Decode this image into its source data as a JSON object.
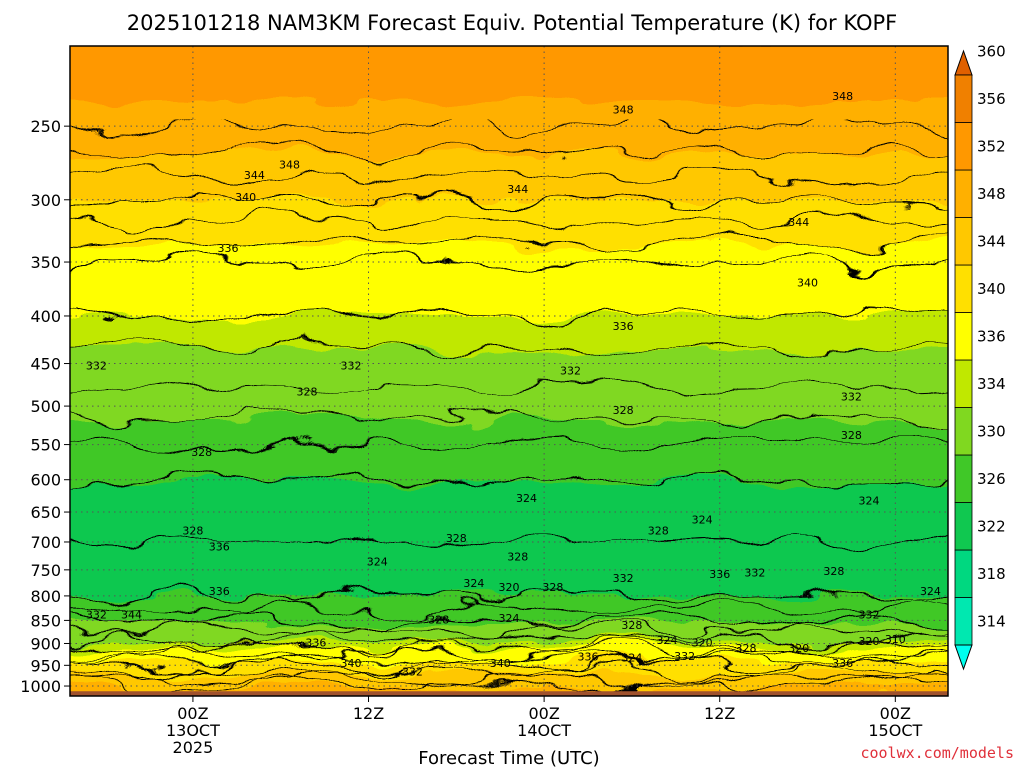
{
  "chart_data": {
    "type": "heatmap",
    "title": "2025101218 NAM3KM Forecast Equiv. Potential Temperature (K) for KOPF",
    "xlabel": "Forecast Time (UTC)",
    "ylabel": "",
    "credit": "coolwx.com/models",
    "y_axis": {
      "scale": "pressure-log",
      "range": [
        1025,
        205
      ],
      "ticks": [
        250,
        300,
        350,
        400,
        450,
        500,
        550,
        600,
        650,
        700,
        750,
        800,
        850,
        900,
        950,
        1000
      ]
    },
    "x_axis": {
      "range_hours": [
        -7,
        43
      ],
      "ticks": [
        {
          "hour": 0,
          "lines": [
            "00Z",
            "13OCT",
            "2025"
          ]
        },
        {
          "hour": 10,
          "lines": [
            "12Z"
          ]
        },
        {
          "hour": 20,
          "lines": [
            "00Z",
            "14OCT"
          ]
        },
        {
          "hour": 30,
          "lines": [
            "12Z"
          ]
        },
        {
          "hour": 40,
          "lines": [
            "00Z",
            "15OCT"
          ]
        }
      ]
    },
    "colorbar": {
      "ticks": [
        314,
        318,
        322,
        326,
        330,
        334,
        336,
        340,
        344,
        348,
        352,
        356,
        360
      ],
      "levels": [
        312,
        314,
        318,
        322,
        326,
        330,
        334,
        336,
        340,
        344,
        348,
        352,
        356,
        360,
        364
      ],
      "colors": [
        "#00ffee",
        "#00e8b0",
        "#00d880",
        "#10c850",
        "#40c828",
        "#80d820",
        "#c0e800",
        "#ffff00",
        "#ffe000",
        "#ffc800",
        "#ffb000",
        "#ff9800",
        "#f08000",
        "#e06000"
      ]
    },
    "grid": true,
    "ground_color": "#a0522d",
    "ground_pressure": 1013,
    "profile": [
      {
        "p": 250,
        "theta": 350
      },
      {
        "p": 300,
        "theta": 344
      },
      {
        "p": 350,
        "theta": 338
      },
      {
        "p": 400,
        "theta": 336
      },
      {
        "p": 450,
        "theta": 333
      },
      {
        "p": 500,
        "theta": 331
      },
      {
        "p": 550,
        "theta": 328
      },
      {
        "p": 600,
        "theta": 326
      },
      {
        "p": 650,
        "theta": 325
      },
      {
        "p": 700,
        "theta": 326
      },
      {
        "p": 750,
        "theta": 325
      },
      {
        "p": 800,
        "theta": 326
      },
      {
        "p": 850,
        "theta": 330
      },
      {
        "p": 900,
        "theta": 335
      },
      {
        "p": 950,
        "theta": 342
      },
      {
        "p": 1000,
        "theta": 348
      }
    ],
    "contour_labels": [
      {
        "hour": 37,
        "p": 232,
        "text": "348"
      },
      {
        "hour": 24.5,
        "p": 240,
        "text": "348"
      },
      {
        "hour": 5.5,
        "p": 275,
        "text": "348"
      },
      {
        "hour": 3.5,
        "p": 282,
        "text": "344"
      },
      {
        "hour": 18.5,
        "p": 292,
        "text": "344"
      },
      {
        "hour": 3,
        "p": 298,
        "text": "340"
      },
      {
        "hour": 34.5,
        "p": 317,
        "text": "344"
      },
      {
        "hour": 2,
        "p": 338,
        "text": "336"
      },
      {
        "hour": 35,
        "p": 368,
        "text": "340"
      },
      {
        "hour": 24.5,
        "p": 410,
        "text": "336"
      },
      {
        "hour": -5.5,
        "p": 452,
        "text": "332"
      },
      {
        "hour": 9,
        "p": 452,
        "text": "332"
      },
      {
        "hour": 21.5,
        "p": 458,
        "text": "332"
      },
      {
        "hour": 6.5,
        "p": 482,
        "text": "328"
      },
      {
        "hour": 37.5,
        "p": 488,
        "text": "332"
      },
      {
        "hour": 24.5,
        "p": 505,
        "text": "328"
      },
      {
        "hour": 37.5,
        "p": 537,
        "text": "328"
      },
      {
        "hour": 0.5,
        "p": 560,
        "text": "328"
      },
      {
        "hour": 19,
        "p": 628,
        "text": "324"
      },
      {
        "hour": 38.5,
        "p": 632,
        "text": "324"
      },
      {
        "hour": 29,
        "p": 662,
        "text": "324"
      },
      {
        "hour": 0,
        "p": 680,
        "text": "328"
      },
      {
        "hour": 26.5,
        "p": 680,
        "text": "328"
      },
      {
        "hour": 15,
        "p": 693,
        "text": "328"
      },
      {
        "hour": 1.5,
        "p": 708,
        "text": "336"
      },
      {
        "hour": 18.5,
        "p": 726,
        "text": "328"
      },
      {
        "hour": 10.5,
        "p": 735,
        "text": "324"
      },
      {
        "hour": 32,
        "p": 755,
        "text": "332"
      },
      {
        "hour": 36.5,
        "p": 752,
        "text": "328"
      },
      {
        "hour": 30,
        "p": 758,
        "text": "336"
      },
      {
        "hour": 24.5,
        "p": 765,
        "text": "332"
      },
      {
        "hour": 16,
        "p": 775,
        "text": "324"
      },
      {
        "hour": 18,
        "p": 783,
        "text": "320"
      },
      {
        "hour": 20.5,
        "p": 783,
        "text": "328"
      },
      {
        "hour": 1.5,
        "p": 790,
        "text": "336"
      },
      {
        "hour": 42,
        "p": 790,
        "text": "324"
      },
      {
        "hour": -5.5,
        "p": 838,
        "text": "332"
      },
      {
        "hour": -3.5,
        "p": 838,
        "text": "344"
      },
      {
        "hour": 38.5,
        "p": 838,
        "text": "332"
      },
      {
        "hour": 14,
        "p": 848,
        "text": "328"
      },
      {
        "hour": 18,
        "p": 845,
        "text": "324"
      },
      {
        "hour": 25,
        "p": 860,
        "text": "328"
      },
      {
        "hour": 7,
        "p": 898,
        "text": "336"
      },
      {
        "hour": 27,
        "p": 892,
        "text": "324"
      },
      {
        "hour": 29,
        "p": 898,
        "text": "320"
      },
      {
        "hour": 38.5,
        "p": 895,
        "text": "320"
      },
      {
        "hour": 31.5,
        "p": 910,
        "text": "328"
      },
      {
        "hour": 34.5,
        "p": 910,
        "text": "320"
      },
      {
        "hour": 40,
        "p": 890,
        "text": "310"
      },
      {
        "hour": 22.5,
        "p": 930,
        "text": "336"
      },
      {
        "hour": 25,
        "p": 932,
        "text": "324"
      },
      {
        "hour": 28,
        "p": 928,
        "text": "332"
      },
      {
        "hour": 17.5,
        "p": 945,
        "text": "340"
      },
      {
        "hour": 9,
        "p": 945,
        "text": "340"
      },
      {
        "hour": 37,
        "p": 945,
        "text": "336"
      },
      {
        "hour": 12.5,
        "p": 965,
        "text": "332"
      }
    ]
  }
}
